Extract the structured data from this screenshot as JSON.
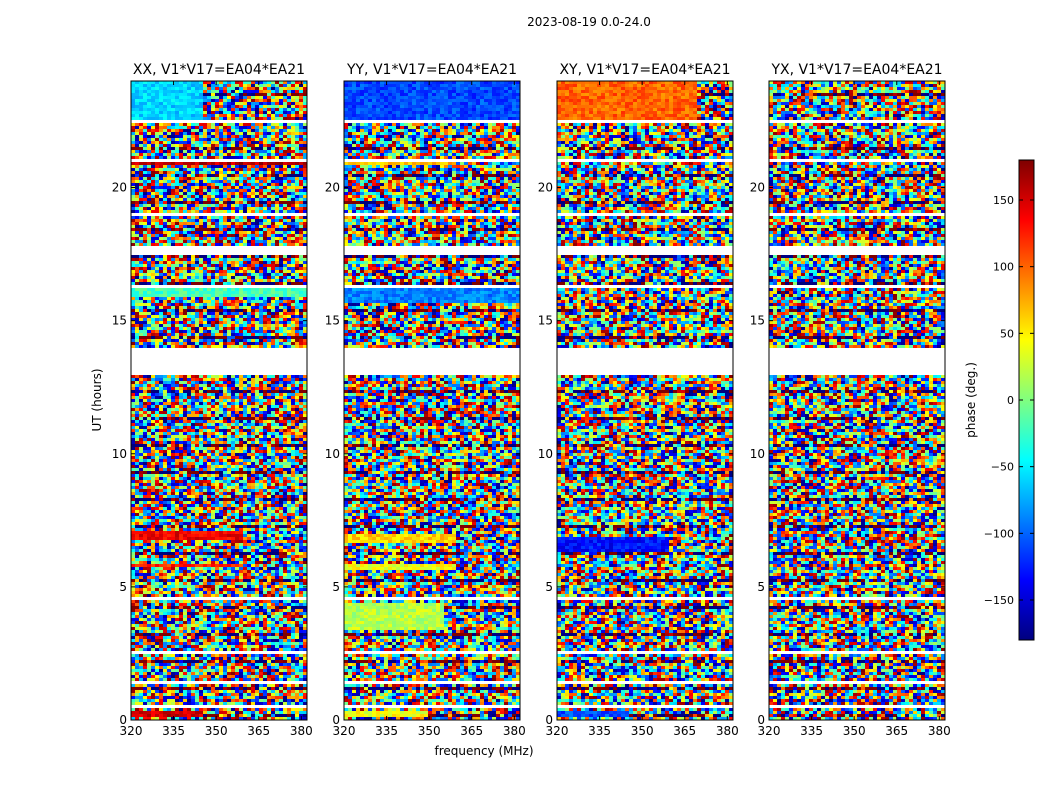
{
  "chart_data": {
    "type": "heatmap",
    "suptitle": "2023-08-19 0.0-24.0",
    "xlabel": "frequency (MHz)",
    "ylabel": "UT (hours)",
    "xlim": [
      320,
      382
    ],
    "ylim": [
      0,
      24
    ],
    "xticks": [
      320,
      335,
      350,
      365,
      380
    ],
    "yticks": [
      0,
      5,
      10,
      15,
      20
    ],
    "colorbar": {
      "label": "phase (deg.)",
      "range": [
        -180,
        180
      ],
      "ticks": [
        150,
        100,
        50,
        0,
        -50,
        -100,
        -150
      ],
      "tick_labels": [
        "150",
        "100",
        "50",
        "0",
        "−50",
        "−100",
        "−150"
      ],
      "colormap": "jet",
      "colors": [
        "#00007f",
        "#0000ff",
        "#0080ff",
        "#00ffff",
        "#80ff80",
        "#ffff00",
        "#ff8000",
        "#ff0000",
        "#7f0000"
      ]
    },
    "gaps_hours": [
      [
        13.0,
        14.0
      ],
      [
        0.5,
        0.6
      ],
      [
        1.35,
        1.45
      ],
      [
        2.45,
        2.55
      ],
      [
        4.5,
        4.6
      ],
      [
        17.5,
        17.8
      ],
      [
        18.9,
        19.0
      ],
      [
        22.4,
        22.5
      ],
      [
        16.2,
        16.3
      ],
      [
        21.0,
        21.1
      ]
    ],
    "panels": [
      {
        "title": "XX, V1*V17=EA04*EA21",
        "coherent_bands": [
          {
            "t0": 22.4,
            "t1": 24.0,
            "f0": 320,
            "f1": 345,
            "phase": -60
          },
          {
            "t0": 20.8,
            "t1": 21.0,
            "f0": 320,
            "f1": 382,
            "phase": 160
          },
          {
            "t0": 15.9,
            "t1": 16.2,
            "f0": 320,
            "f1": 382,
            "phase": -20
          },
          {
            "t0": 6.8,
            "t1": 7.1,
            "f0": 320,
            "f1": 360,
            "phase": 140
          },
          {
            "t0": 5.7,
            "t1": 5.9,
            "f0": 320,
            "f1": 360,
            "phase": 120
          },
          {
            "t0": 0.1,
            "t1": 0.3,
            "f0": 320,
            "f1": 345,
            "phase": 150
          }
        ]
      },
      {
        "title": "YY, V1*V17=EA04*EA21",
        "coherent_bands": [
          {
            "t0": 22.4,
            "t1": 24.0,
            "f0": 320,
            "f1": 382,
            "phase": -110
          },
          {
            "t0": 20.8,
            "t1": 21.0,
            "f0": 320,
            "f1": 360,
            "phase": 70
          },
          {
            "t0": 15.7,
            "t1": 16.2,
            "f0": 320,
            "f1": 382,
            "phase": -90
          },
          {
            "t0": 6.6,
            "t1": 7.0,
            "f0": 320,
            "f1": 360,
            "phase": 60
          },
          {
            "t0": 5.6,
            "t1": 5.9,
            "f0": 320,
            "f1": 360,
            "phase": 40
          },
          {
            "t0": 3.4,
            "t1": 4.4,
            "f0": 320,
            "f1": 355,
            "phase": 20
          },
          {
            "t0": 0.1,
            "t1": 0.3,
            "f0": 320,
            "f1": 350,
            "phase": 40
          }
        ]
      },
      {
        "title": "XY, V1*V17=EA04*EA21",
        "coherent_bands": [
          {
            "t0": 22.4,
            "t1": 24.0,
            "f0": 320,
            "f1": 370,
            "phase": 100
          },
          {
            "t0": 6.3,
            "t1": 6.9,
            "f0": 320,
            "f1": 360,
            "phase": -130
          },
          {
            "t0": 0.1,
            "t1": 0.3,
            "f0": 320,
            "f1": 345,
            "phase": -110
          }
        ]
      },
      {
        "title": "YX, V1*V17=EA04*EA21",
        "coherent_bands": []
      }
    ]
  }
}
